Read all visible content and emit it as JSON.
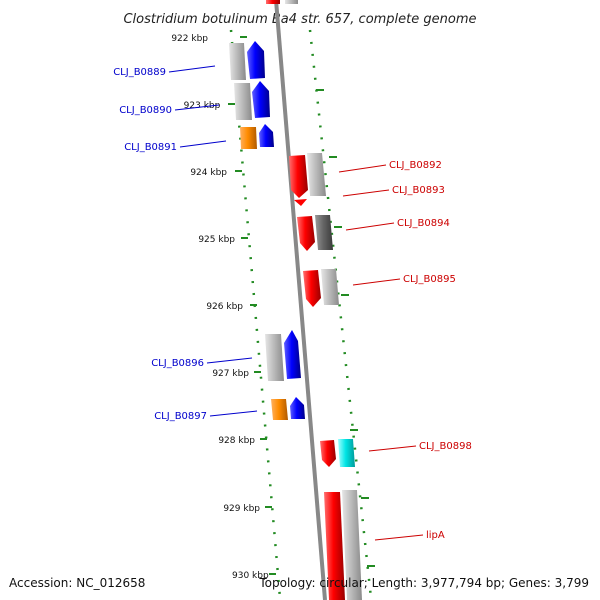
{
  "title": "Clostridium botulinum Ba4 str. 657, complete genome",
  "accession": "Accession: NC_012658",
  "topology": "Topology: circular; Length: 3,977,794 bp; Genes: 3,799",
  "colors": {
    "left_strand_label": "#0000cc",
    "right_strand_label": "#cc0000",
    "blue_gene": "#0000ff",
    "red_gene": "#ff0000",
    "orange_gene": "#ff8c00",
    "cyan_gene": "#00e5e5",
    "gray_gene": "#bbbbbb",
    "dark_gray_gene": "#666666",
    "tick_green": "#228b22",
    "axis_gray": "#888888"
  },
  "kbp_labels": [
    "922 kbp",
    "923 kbp",
    "924 kbp",
    "925 kbp",
    "926 kbp",
    "927 kbp",
    "928 kbp",
    "929 kbp",
    "930 kbp"
  ],
  "gene_labels_left": [
    "CLJ_B0889",
    "CLJ_B0890",
    "CLJ_B0891",
    "CLJ_B0896",
    "CLJ_B0897"
  ],
  "gene_labels_right": [
    "CLJ_B0892",
    "CLJ_B0893",
    "CLJ_B0894",
    "CLJ_B0895",
    "CLJ_B0898",
    "lipA"
  ]
}
